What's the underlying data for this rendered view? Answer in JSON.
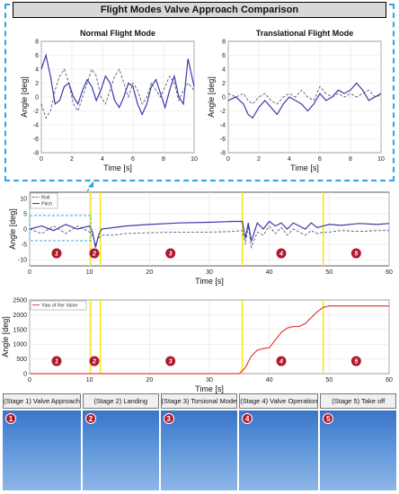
{
  "banner": {
    "title": "Flight Modes Valve Approach Comparison"
  },
  "colors": {
    "accent": "#2fa4de",
    "roll": "#55557a",
    "pitch": "#3a3aa8",
    "yaw": "#e04040",
    "stage_line": "#f5e600",
    "badge": "#b0182c"
  },
  "chart_data": [
    {
      "id": "normal",
      "type": "line",
      "title": "Normal Flight Mode",
      "xlabel": "Time [s]",
      "ylabel": "Angle [deg]",
      "xlim": [
        0,
        10
      ],
      "ylim": [
        -8,
        8
      ],
      "xticks": [
        "0",
        "2",
        "4",
        "6",
        "8",
        "10"
      ],
      "yticks": [
        "-8",
        "-6",
        "-4",
        "-2",
        "0",
        "2",
        "4",
        "6",
        "8"
      ],
      "grid": true,
      "series": [
        {
          "style": "solid",
          "x": [
            0,
            0.3,
            0.6,
            0.9,
            1.2,
            1.5,
            1.8,
            2.1,
            2.4,
            2.7,
            3.0,
            3.3,
            3.6,
            3.9,
            4.2,
            4.5,
            4.8,
            5.1,
            5.4,
            5.7,
            6.0,
            6.3,
            6.6,
            6.9,
            7.2,
            7.5,
            7.8,
            8.1,
            8.4,
            8.7,
            9.0,
            9.3,
            9.6,
            10
          ],
          "y": [
            4,
            6,
            3,
            -1,
            -0.5,
            1.5,
            2,
            0,
            -1,
            1,
            2.5,
            1.5,
            -0.5,
            1,
            3,
            2,
            -0.5,
            -1.5,
            0,
            2,
            1.5,
            -1,
            -2.5,
            -1,
            1.5,
            2.5,
            0.5,
            -1.5,
            1,
            3,
            0,
            -1,
            5.5,
            1.5
          ]
        },
        {
          "style": "dashed",
          "x": [
            0,
            0.3,
            0.6,
            0.9,
            1.2,
            1.5,
            1.8,
            2.1,
            2.4,
            2.7,
            3.0,
            3.3,
            3.6,
            3.9,
            4.2,
            4.5,
            4.8,
            5.1,
            5.4,
            5.7,
            6.0,
            6.3,
            6.6,
            6.9,
            7.2,
            7.5,
            7.8,
            8.1,
            8.4,
            8.7,
            9.0,
            9.3,
            9.6,
            10
          ],
          "y": [
            -1,
            -3,
            -2,
            1,
            3,
            4,
            2,
            -1,
            -2,
            0,
            2,
            4,
            3,
            0,
            -1,
            1,
            3,
            4,
            2,
            0,
            2,
            1,
            -1,
            0,
            2,
            1,
            0,
            1.5,
            3,
            2,
            -0.5,
            1,
            2,
            1
          ]
        }
      ]
    },
    {
      "id": "translational",
      "type": "line",
      "title": "Translational Flight Mode",
      "xlabel": "Time [s]",
      "ylabel": "Angle [deg]",
      "xlim": [
        0,
        10
      ],
      "ylim": [
        -8,
        8
      ],
      "xticks": [
        "0",
        "2",
        "4",
        "6",
        "8",
        "10"
      ],
      "yticks": [
        "-8",
        "-6",
        "-4",
        "-2",
        "0",
        "2",
        "4",
        "6",
        "8"
      ],
      "grid": true,
      "series": [
        {
          "style": "solid",
          "x": [
            0,
            0.5,
            1,
            1.3,
            1.6,
            2,
            2.4,
            2.8,
            3.2,
            3.6,
            4,
            4.4,
            4.8,
            5.2,
            5.6,
            6,
            6.4,
            6.8,
            7.2,
            7.6,
            8,
            8.4,
            8.8,
            9.2,
            9.6,
            10
          ],
          "y": [
            -0.5,
            0,
            -1,
            -2.5,
            -3,
            -1.5,
            -0.5,
            -1.5,
            -2.5,
            -1,
            0,
            -0.5,
            -1,
            -2,
            -1,
            0.5,
            -0.5,
            0,
            1,
            0.5,
            1,
            2,
            1,
            -0.5,
            0,
            0.5
          ]
        },
        {
          "style": "dashed",
          "x": [
            0,
            0.5,
            1,
            1.3,
            1.6,
            2,
            2.4,
            2.8,
            3.2,
            3.6,
            4,
            4.4,
            4.8,
            5.2,
            5.6,
            6,
            6.4,
            6.8,
            7.2,
            7.6,
            8,
            8.4,
            8.8,
            9.2,
            9.6,
            10
          ],
          "y": [
            0.5,
            0,
            0.5,
            -0.5,
            -1,
            0,
            0.5,
            -0.5,
            -1,
            0,
            0.5,
            0,
            1,
            0,
            -0.5,
            1.5,
            0.5,
            0,
            0.5,
            0,
            0.5,
            0,
            0.5,
            1,
            0,
            0.3
          ]
        }
      ]
    },
    {
      "id": "rollpitch",
      "type": "line",
      "xlabel": "Time [s]",
      "ylabel": "Angle [deg]",
      "xlim": [
        0,
        60
      ],
      "ylim": [
        -12,
        12
      ],
      "xticks": [
        "0",
        "10",
        "20",
        "30",
        "40",
        "50",
        "60"
      ],
      "yticks": [
        "-10",
        "-5",
        "0",
        "5",
        "10"
      ],
      "grid": true,
      "legend": "top-left",
      "stage_lines": [
        10.2,
        11.8,
        35.5,
        49
      ],
      "stage_markers": [
        {
          "x": 4.5,
          "label": "1"
        },
        {
          "x": 10.8,
          "label": "2"
        },
        {
          "x": 23.5,
          "label": "3"
        },
        {
          "x": 42,
          "label": "4"
        },
        {
          "x": 54.5,
          "label": "5"
        }
      ],
      "series": [
        {
          "name": "Roll",
          "style": "dashed",
          "x": [
            0,
            2,
            4,
            6,
            8,
            10,
            10.5,
            11,
            11.5,
            12,
            14,
            16,
            20,
            25,
            30,
            34,
            35.5,
            36,
            36.5,
            37,
            38,
            39,
            40,
            41,
            42,
            43,
            44,
            45,
            46,
            47,
            48,
            49,
            50,
            52,
            55,
            58,
            60
          ],
          "y": [
            0,
            -1.5,
            1,
            -1.5,
            1,
            -1,
            -2,
            -5,
            -3,
            -2,
            -2,
            -1.5,
            -1.2,
            -1,
            -1,
            -0.8,
            -0.5,
            -5,
            1,
            -6,
            -1,
            -2,
            1,
            -1.5,
            0.5,
            -2,
            0,
            -1,
            -2,
            -0.5,
            -1.5,
            -1,
            -1,
            -0.5,
            -0.8,
            -0.5,
            -0.5
          ]
        },
        {
          "name": "Pitch",
          "style": "solid",
          "x": [
            0,
            2,
            4,
            6,
            8,
            10,
            10.5,
            11,
            11.5,
            12,
            14,
            16,
            20,
            25,
            30,
            34,
            35.5,
            36,
            36.5,
            37,
            38,
            39,
            40,
            41,
            42,
            43,
            44,
            45,
            46,
            47,
            48,
            49,
            50,
            52,
            55,
            58,
            60
          ],
          "y": [
            0,
            1,
            -0.5,
            1.5,
            0,
            1,
            -1,
            -6,
            -2,
            0,
            0.5,
            1,
            1.5,
            2,
            2.2,
            2.5,
            2.5,
            -3,
            2,
            -4,
            2,
            0,
            2.5,
            1,
            2,
            0,
            2,
            1,
            0,
            2,
            0.5,
            1,
            1.5,
            1.2,
            1.8,
            1.5,
            1.8
          ]
        }
      ]
    },
    {
      "id": "yaw",
      "type": "line",
      "xlabel": "Time [s]",
      "ylabel": "Angle [deg]",
      "xlim": [
        0,
        60
      ],
      "ylim": [
        0,
        2500
      ],
      "xticks": [
        "0",
        "10",
        "20",
        "30",
        "40",
        "50",
        "60"
      ],
      "yticks": [
        "0",
        "500",
        "1000",
        "1500",
        "2000",
        "2500"
      ],
      "grid": true,
      "legend": "top-left",
      "stage_lines": [
        10.2,
        11.8,
        35.5,
        49
      ],
      "stage_markers": [
        {
          "x": 4.5,
          "label": "1"
        },
        {
          "x": 10.8,
          "label": "2"
        },
        {
          "x": 23.5,
          "label": "3"
        },
        {
          "x": 42,
          "label": "4"
        },
        {
          "x": 54.5,
          "label": "5"
        }
      ],
      "series": [
        {
          "name": "Yaw of the Valve",
          "style": "solid",
          "x": [
            0,
            35,
            36,
            37,
            38,
            39,
            40,
            42,
            43,
            44,
            45,
            46,
            47,
            48,
            49,
            50,
            52,
            55,
            60
          ],
          "y": [
            0,
            0,
            200,
            600,
            800,
            850,
            880,
            1400,
            1550,
            1600,
            1600,
            1700,
            1900,
            2100,
            2250,
            2300,
            2300,
            2300,
            2300
          ]
        }
      ]
    }
  ],
  "stages": [
    {
      "label": "(Stage 1) Valve  Approach",
      "num": "1"
    },
    {
      "label": "(Stage 2) Landing",
      "num": "2"
    },
    {
      "label": "(Stage 3) Torsional Mode",
      "num": "3"
    },
    {
      "label": "(Stage 4) Valve Operation",
      "num": "4"
    },
    {
      "label": "(Stage 5) Take off",
      "num": "5"
    }
  ]
}
